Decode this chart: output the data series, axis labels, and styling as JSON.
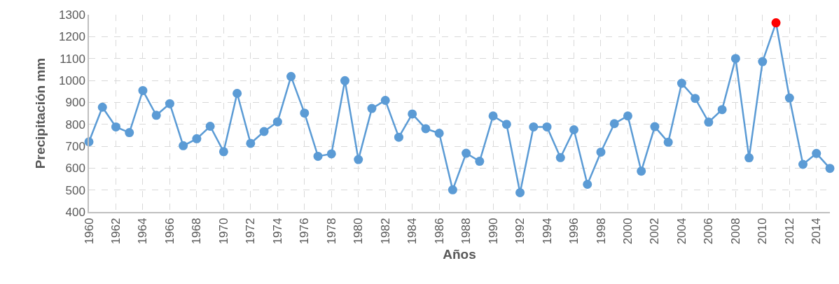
{
  "chart_data": {
    "type": "line",
    "xlabel": "Años",
    "ylabel": "Precipitación mm",
    "x": [
      1960,
      1961,
      1962,
      1963,
      1964,
      1965,
      1966,
      1967,
      1968,
      1969,
      1970,
      1971,
      1972,
      1973,
      1974,
      1975,
      1976,
      1977,
      1978,
      1979,
      1980,
      1981,
      1982,
      1983,
      1984,
      1985,
      1986,
      1987,
      1988,
      1989,
      1990,
      1991,
      1992,
      1993,
      1994,
      1995,
      1996,
      1997,
      1998,
      1999,
      2000,
      2001,
      2002,
      2003,
      2004,
      2005,
      2006,
      2007,
      2008,
      2009,
      2010,
      2011,
      2012,
      2013,
      2014,
      2015
    ],
    "values": [
      720,
      878,
      788,
      762,
      954,
      841,
      894,
      702,
      734,
      791,
      675,
      941,
      713,
      767,
      811,
      1018,
      851,
      654,
      665,
      999,
      639,
      872,
      909,
      741,
      847,
      780,
      759,
      501,
      668,
      631,
      838,
      800,
      488,
      788,
      788,
      648,
      775,
      526,
      673,
      803,
      838,
      586,
      789,
      718,
      987,
      918,
      810,
      867,
      1100,
      647,
      1086,
      1263,
      920,
      617,
      667,
      599
    ],
    "color": "#5b9bd5",
    "colors": [
      "#5b9bd5",
      "#5b9bd5",
      "#5b9bd5",
      "#5b9bd5",
      "#5b9bd5",
      "#5b9bd5",
      "#5b9bd5",
      "#5b9bd5",
      "#5b9bd5",
      "#5b9bd5",
      "#5b9bd5",
      "#5b9bd5",
      "#5b9bd5",
      "#5b9bd5",
      "#5b9bd5",
      "#5b9bd5",
      "#5b9bd5",
      "#5b9bd5",
      "#5b9bd5",
      "#5b9bd5",
      "#5b9bd5",
      "#5b9bd5",
      "#5b9bd5",
      "#5b9bd5",
      "#5b9bd5",
      "#5b9bd5",
      "#5b9bd5",
      "#5b9bd5",
      "#5b9bd5",
      "#5b9bd5",
      "#5b9bd5",
      "#5b9bd5",
      "#5b9bd5",
      "#5b9bd5",
      "#5b9bd5",
      "#5b9bd5",
      "#5b9bd5",
      "#5b9bd5",
      "#5b9bd5",
      "#5b9bd5",
      "#5b9bd5",
      "#5b9bd5",
      "#5b9bd5",
      "#5b9bd5",
      "#5b9bd5",
      "#5b9bd5",
      "#5b9bd5",
      "#5b9bd5",
      "#5b9bd5",
      "#5b9bd5",
      "#5b9bd5",
      "#ff0000",
      "#5b9bd5",
      "#5b9bd5",
      "#5b9bd5",
      "#5b9bd5"
    ],
    "xlim": [
      1960,
      2015
    ],
    "xticks": [
      1960,
      1962,
      1964,
      1966,
      1968,
      1970,
      1972,
      1974,
      1976,
      1978,
      1980,
      1982,
      1984,
      1986,
      1988,
      1990,
      1992,
      1994,
      1996,
      1998,
      2000,
      2002,
      2004,
      2006,
      2008,
      2010,
      2012,
      2014
    ],
    "ylim": [
      400,
      1300
    ],
    "yticks": [
      400,
      500,
      600,
      700,
      800,
      900,
      1000,
      1100,
      1200,
      1300
    ],
    "grid": true,
    "marker": "circle",
    "line_style": "solid"
  }
}
